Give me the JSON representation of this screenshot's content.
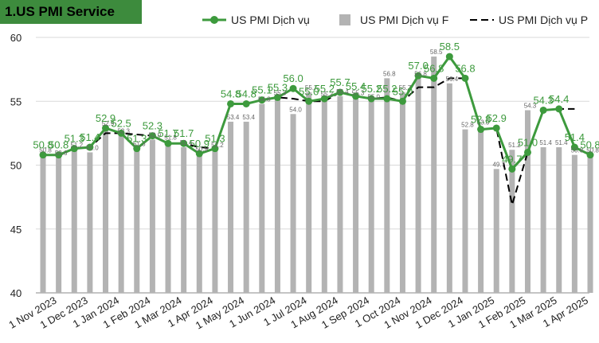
{
  "chart_data": {
    "type": "bar",
    "title": "1.US PMI Service",
    "ylim": [
      40,
      60
    ],
    "yticks": [
      40,
      45,
      50,
      55,
      60
    ],
    "grid": true,
    "legend_position": "top",
    "x_tick_labels": [
      "1 Nov 2023",
      "1 Dec 2023",
      "1 Jan 2024",
      "1 Feb 2024",
      "1 Mar 2024",
      "1 Apr 2024",
      "1 May 2024",
      "1 Jun 2024",
      "1 Jul 2024",
      "1 Aug 2024",
      "1 Sep 2024",
      "1 Oct 2024",
      "1 Nov 2024",
      "1 Dec 2024",
      "1 Jan 2025",
      "1 Feb 2025",
      "1 Mar 2025",
      "1 Apr 2025"
    ],
    "series": [
      {
        "name": "US PMI Dịch vụ",
        "kind": "line",
        "color": "#3d9a3d",
        "values": [
          50.8,
          50.8,
          51.3,
          51.4,
          52.9,
          52.5,
          51.3,
          52.3,
          51.7,
          51.7,
          50.9,
          51.3,
          54.8,
          54.8,
          55.1,
          55.3,
          56.0,
          55.0,
          55.2,
          55.7,
          55.4,
          55.2,
          55.2,
          55.0,
          57.0,
          56.8,
          58.5,
          56.8,
          52.8,
          52.9,
          49.7,
          51.0,
          54.3,
          54.4,
          51.4,
          50.8
        ]
      },
      {
        "name": "US PMI Dịch vụ F",
        "kind": "bar",
        "color": "#b3b3b3",
        "values": [
          50.8,
          50.6,
          51.2,
          51.0,
          52.9,
          52.3,
          51.3,
          52.0,
          51.8,
          51.4,
          50.9,
          51.2,
          53.4,
          53.4,
          54.8,
          55.3,
          54.0,
          55.7,
          55.2,
          55.4,
          55.3,
          55.0,
          56.8,
          55.7,
          56.8,
          58.5,
          56.4,
          52.8,
          53.0,
          49.7,
          51.2,
          54.3,
          51.4,
          51.4,
          50.8,
          50.8
        ]
      },
      {
        "name": "US PMI Dịch vụ P",
        "kind": "dashed-line",
        "color": "#000000",
        "values": [
          50.8,
          50.8,
          51.3,
          51.4,
          52.5,
          52.5,
          52.4,
          52.3,
          51.7,
          51.7,
          51.4,
          51.3,
          54.8,
          54.8,
          55.1,
          55.3,
          55.2,
          55.0,
          55.0,
          55.7,
          55.4,
          55.2,
          55.3,
          55.0,
          56.1,
          56.1,
          56.8,
          56.8,
          52.8,
          52.9,
          46.9,
          51.0,
          54.3,
          54.4,
          54.4,
          null
        ]
      }
    ]
  }
}
